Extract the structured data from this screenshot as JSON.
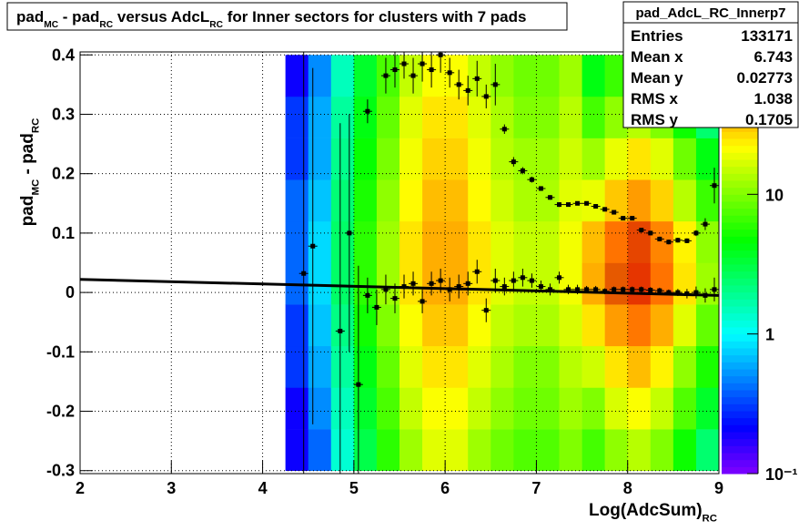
{
  "chart_data": {
    "type": "heatmap",
    "title": [
      "pad",
      "MC",
      " - pad",
      "RC",
      " versus AdcL",
      "RC",
      " for Inner sectors for clusters with 7 pads"
    ],
    "x_label": [
      "Log(AdcSum)",
      "RC"
    ],
    "y_label": [
      "pad",
      "MC",
      " - pad",
      "RC"
    ],
    "xlim": [
      2,
      9
    ],
    "xticks": [
      2,
      3,
      4,
      5,
      6,
      7,
      8,
      9
    ],
    "ylim": [
      -0.305,
      0.405
    ],
    "yticks": [
      -0.3,
      -0.2,
      -0.1,
      0,
      0.1,
      0.2,
      0.3,
      0.4
    ],
    "zlim": [
      0.1,
      100
    ],
    "zticks": [
      {
        "value": 0.1,
        "label": "10⁻¹"
      },
      1,
      10
    ],
    "log_z": true,
    "grid": true,
    "heatmap": {
      "bins_x": [
        4.25,
        4.5,
        4.75,
        5.0,
        5.25,
        5.5,
        5.75,
        6.0,
        6.25,
        6.5,
        6.75,
        7.0,
        7.25,
        7.5,
        7.75,
        8.0,
        8.25,
        8.5,
        8.75,
        9.0
      ],
      "bins_y": [
        -0.3,
        -0.23,
        -0.16,
        -0.09,
        -0.02,
        0.05,
        0.12,
        0.19,
        0.26,
        0.33,
        0.4
      ],
      "counts": [
        [
          0.2,
          0.2,
          0.3,
          0.3,
          0.4,
          0.4,
          0.4,
          0.3,
          0.3,
          0.2
        ],
        [
          0.4,
          0.5,
          0.6,
          0.7,
          0.8,
          0.8,
          0.7,
          0.6,
          0.6,
          0.5
        ],
        [
          1.3,
          1.5,
          1.8,
          2.1,
          2.5,
          2.5,
          2.3,
          2,
          1.8,
          1.5
        ],
        [
          3,
          3.6,
          4.2,
          5.1,
          6,
          6,
          5.4,
          4.8,
          4.2,
          3.6
        ],
        [
          6,
          7.2,
          8.4,
          10,
          12,
          12,
          11,
          9.6,
          8.4,
          7.2
        ],
        [
          12,
          15,
          18,
          21,
          25,
          25,
          22,
          20,
          18,
          15
        ],
        [
          18,
          21,
          25,
          30,
          35,
          35,
          32,
          28,
          25,
          21
        ],
        [
          18,
          21,
          25,
          30,
          35,
          35,
          32,
          28,
          25,
          21
        ],
        [
          12,
          15,
          18,
          21,
          25,
          25,
          22,
          20,
          18,
          15
        ],
        [
          9,
          11,
          13,
          15,
          18,
          18,
          16,
          14,
          13,
          11
        ],
        [
          7.5,
          9,
          10,
          13,
          15,
          15,
          13,
          12,
          10,
          9
        ],
        [
          7.5,
          9,
          10,
          13,
          15,
          15,
          13,
          12,
          10,
          9
        ],
        [
          10,
          12,
          14,
          17,
          20,
          20,
          18,
          16,
          14,
          12
        ],
        [
          7,
          10,
          16,
          25,
          35,
          32,
          19,
          12,
          7,
          4.2
        ],
        [
          11,
          17,
          25,
          39,
          55,
          50,
          30,
          19,
          11,
          6.6
        ],
        [
          14,
          21,
          32,
          49,
          70,
          63,
          39,
          25,
          14,
          8.4
        ],
        [
          10,
          15,
          23,
          35,
          50,
          45,
          28,
          18,
          10,
          6
        ],
        [
          5,
          7.5,
          11,
          18,
          25,
          23,
          14,
          9,
          5,
          3
        ],
        [
          2.4,
          3.6,
          5.4,
          8.4,
          12,
          11,
          6.6,
          4.2,
          2.4,
          1.4
        ]
      ]
    },
    "profiles": [
      {
        "color": "#000000",
        "x": [
          4.45,
          4.55,
          4.85,
          4.95,
          5.05,
          5.15,
          5.25,
          5.35,
          5.45,
          5.55,
          5.65,
          5.75,
          5.85,
          5.95,
          6.05,
          6.15,
          6.25,
          6.35,
          6.45,
          6.55,
          6.65,
          6.75,
          6.85,
          6.95,
          7.05,
          7.15,
          7.25,
          7.35,
          7.45,
          7.55,
          7.65,
          7.75,
          7.85,
          7.95,
          8.05,
          8.15,
          8.25,
          8.35,
          8.45,
          8.55,
          8.65,
          8.75,
          8.85,
          8.95
        ],
        "values": [
          0.032,
          0.078,
          -0.065,
          0.1,
          -0.155,
          -0.005,
          -0.025,
          0.005,
          -0.01,
          0.01,
          0.015,
          -0.015,
          0.015,
          0.02,
          0.005,
          0.01,
          0.015,
          0.035,
          -0.03,
          0.02,
          0.01,
          0.02,
          0.025,
          0.02,
          0.01,
          0.005,
          0.025,
          0.005,
          0.005,
          0.005,
          0.005,
          0.002,
          0.005,
          0.005,
          0.005,
          0.005,
          0.004,
          0.003,
          0,
          0,
          -0.002,
          0,
          -0.005,
          0.005
        ],
        "errors": [
          0.45,
          0.3,
          0.35,
          0.2,
          0.2,
          0.03,
          0.03,
          0.025,
          0.025,
          0.02,
          0.02,
          0.02,
          0.02,
          0.02,
          0.02,
          0.02,
          0.02,
          0.02,
          0.02,
          0.02,
          0.015,
          0.015,
          0.015,
          0.012,
          0.01,
          0.01,
          0.01,
          0.008,
          0.008,
          0.006,
          0.006,
          0.005,
          0.005,
          0.005,
          0.005,
          0.005,
          0.005,
          0.005,
          0.005,
          0.006,
          0.008,
          0.01,
          0.012,
          0.02
        ]
      },
      {
        "color": "#000000",
        "x": [
          5.15,
          5.35,
          5.45,
          5.55,
          5.65,
          5.75,
          5.85,
          5.95,
          6.05,
          6.15,
          6.25,
          6.35,
          6.45,
          6.55,
          6.65,
          6.75,
          6.85,
          6.95,
          7.05,
          7.15,
          7.25,
          7.35,
          7.45,
          7.55,
          7.65,
          7.75,
          7.85,
          7.95,
          8.05,
          8.15,
          8.25,
          8.35,
          8.45,
          8.55,
          8.65,
          8.75,
          8.85,
          8.95
        ],
        "values": [
          0.305,
          0.365,
          0.375,
          0.385,
          0.365,
          0.385,
          0.375,
          0.4,
          0.37,
          0.35,
          0.34,
          0.36,
          0.33,
          0.35,
          0.275,
          0.22,
          0.205,
          0.19,
          0.175,
          0.16,
          0.148,
          0.148,
          0.15,
          0.15,
          0.145,
          0.14,
          0.135,
          0.125,
          0.125,
          0.105,
          0.1,
          0.09,
          0.085,
          0.088,
          0.087,
          0.1,
          0.115,
          0.18
        ],
        "errors": [
          0.02,
          0.03,
          0.03,
          0.025,
          0.03,
          0.03,
          0.03,
          0.03,
          0.025,
          0.025,
          0.025,
          0.03,
          0.02,
          0.035,
          0.008,
          0.008,
          0.006,
          0.005,
          0.004,
          0.004,
          0.004,
          0.003,
          0.003,
          0.003,
          0.003,
          0.003,
          0.003,
          0.003,
          0.003,
          0.003,
          0.004,
          0.004,
          0.004,
          0.004,
          0.004,
          0.005,
          0.01,
          0.03
        ]
      }
    ],
    "fit": {
      "color": "#000000",
      "x": [
        2,
        9
      ],
      "values": [
        0.022,
        -0.005
      ]
    },
    "stats": {
      "name": "pad_AdcL_RC_Innerp7",
      "rows": [
        [
          "Entries",
          133171
        ],
        [
          "Mean x",
          6.743
        ],
        [
          "Mean y",
          0.02773
        ],
        [
          "RMS x",
          1.038
        ],
        [
          "RMS y",
          0.1705
        ]
      ]
    }
  }
}
